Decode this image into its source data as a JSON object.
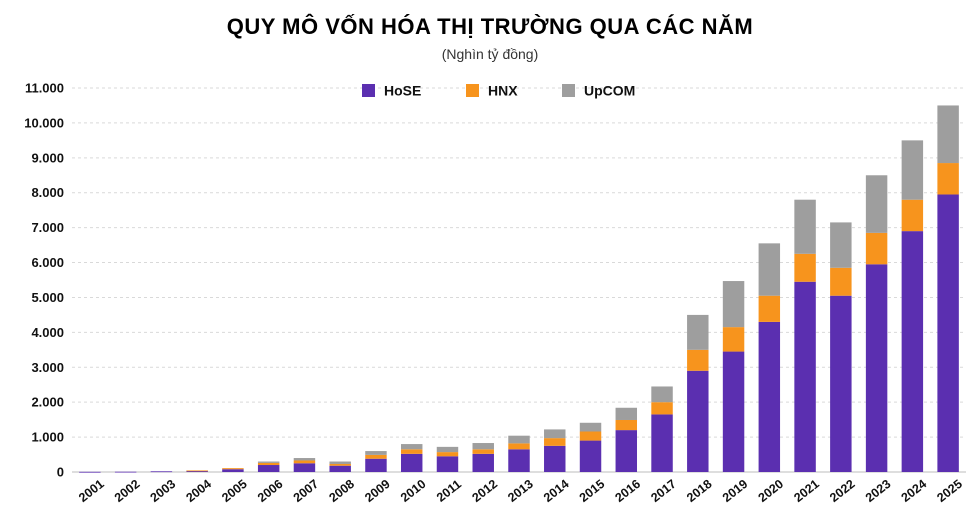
{
  "chart_data": {
    "type": "bar",
    "stacked": true,
    "title": "QUY MÔ VỐN HÓA THỊ TRƯỜNG QUA CÁC NĂM",
    "subtitle": "(Nghìn tỷ đồng)",
    "xlabel": "",
    "ylabel": "",
    "ylim": [
      0,
      11000
    ],
    "y_ticks": [
      "0",
      "1.000",
      "2.000",
      "3.000",
      "4.000",
      "5.000",
      "6.000",
      "7.000",
      "8.000",
      "9.000",
      "10.000",
      "11.000"
    ],
    "grid": true,
    "legend_position": "top-center",
    "categories": [
      "2001",
      "2002",
      "2003",
      "2004",
      "2005",
      "2006",
      "2007",
      "2008",
      "2009",
      "2010",
      "2011",
      "2012",
      "2013",
      "2014",
      "2015",
      "2016",
      "2017",
      "2018",
      "2019",
      "2020",
      "2021",
      "2022",
      "2023",
      "2024",
      "2025"
    ],
    "series": [
      {
        "name": "HoSE",
        "color": "#5b2fb0",
        "values": [
          5,
          8,
          20,
          40,
          80,
          200,
          250,
          180,
          380,
          520,
          450,
          520,
          650,
          750,
          900,
          1200,
          1650,
          2900,
          3450,
          4300,
          5450,
          5050,
          5950,
          6900,
          7950
        ]
      },
      {
        "name": "HNX",
        "color": "#f7941d",
        "values": [
          0,
          0,
          0,
          5,
          30,
          60,
          80,
          50,
          110,
          130,
          120,
          130,
          170,
          220,
          260,
          290,
          350,
          600,
          700,
          750,
          800,
          800,
          900,
          900,
          900
        ]
      },
      {
        "name": "UpCOM",
        "color": "#9e9e9e",
        "values": [
          0,
          0,
          0,
          0,
          0,
          40,
          70,
          70,
          110,
          150,
          150,
          180,
          220,
          250,
          250,
          350,
          450,
          1000,
          1320,
          1500,
          1550,
          1300,
          1650,
          1700,
          1650
        ]
      }
    ]
  }
}
